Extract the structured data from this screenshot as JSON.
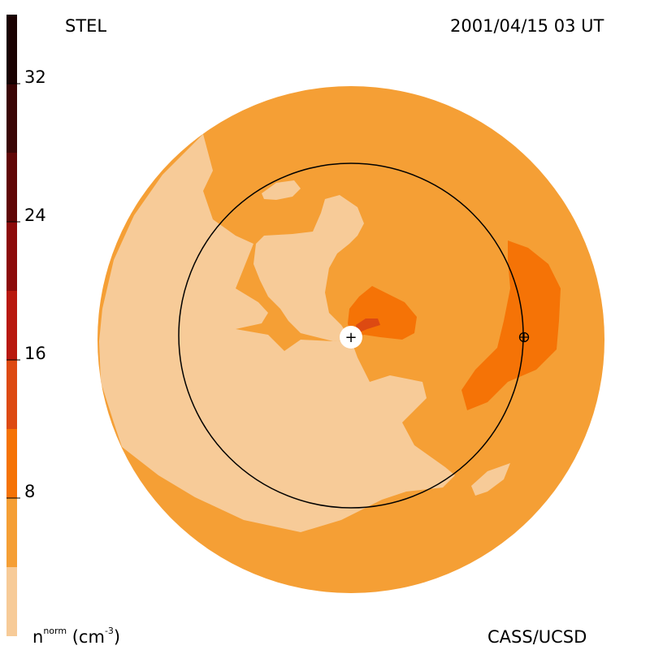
{
  "header": {
    "instrument": "STEL",
    "timestamp": "2001/04/15 03 UT"
  },
  "footer": {
    "credit": "CASS/UCSD",
    "unit_base": "n",
    "unit_sup": "norm",
    "unit_open": " (cm",
    "unit_exp": "-3",
    "unit_close": ")"
  },
  "colorbar": {
    "bands": [
      {
        "from": 0,
        "to": 4,
        "color": "#f7cb98"
      },
      {
        "from": 4,
        "to": 8,
        "color": "#f59f35"
      },
      {
        "from": 8,
        "to": 12,
        "color": "#f57306"
      },
      {
        "from": 12,
        "to": 16,
        "color": "#dd4a12"
      },
      {
        "from": 16,
        "to": 20,
        "color": "#b8180e"
      },
      {
        "from": 20,
        "to": 24,
        "color": "#8c0a0a"
      },
      {
        "from": 24,
        "to": 28,
        "color": "#600606"
      },
      {
        "from": 28,
        "to": 32,
        "color": "#3a0505"
      },
      {
        "from": 32,
        "to": 36,
        "color": "#1a0202"
      }
    ],
    "ticks": [
      {
        "value": 8,
        "label": "8"
      },
      {
        "value": 16,
        "label": "16"
      },
      {
        "value": 24,
        "label": "24"
      },
      {
        "value": 32,
        "label": "32"
      }
    ]
  },
  "map": {
    "colors": {
      "level1": "#f7cb98",
      "level2": "#f59f35",
      "level3": "#f57306",
      "level4": "#dd4a12",
      "ring": "#000000",
      "sun": "#ffffff"
    },
    "sun_symbol": "+",
    "earth_symbol": "⊕"
  }
}
